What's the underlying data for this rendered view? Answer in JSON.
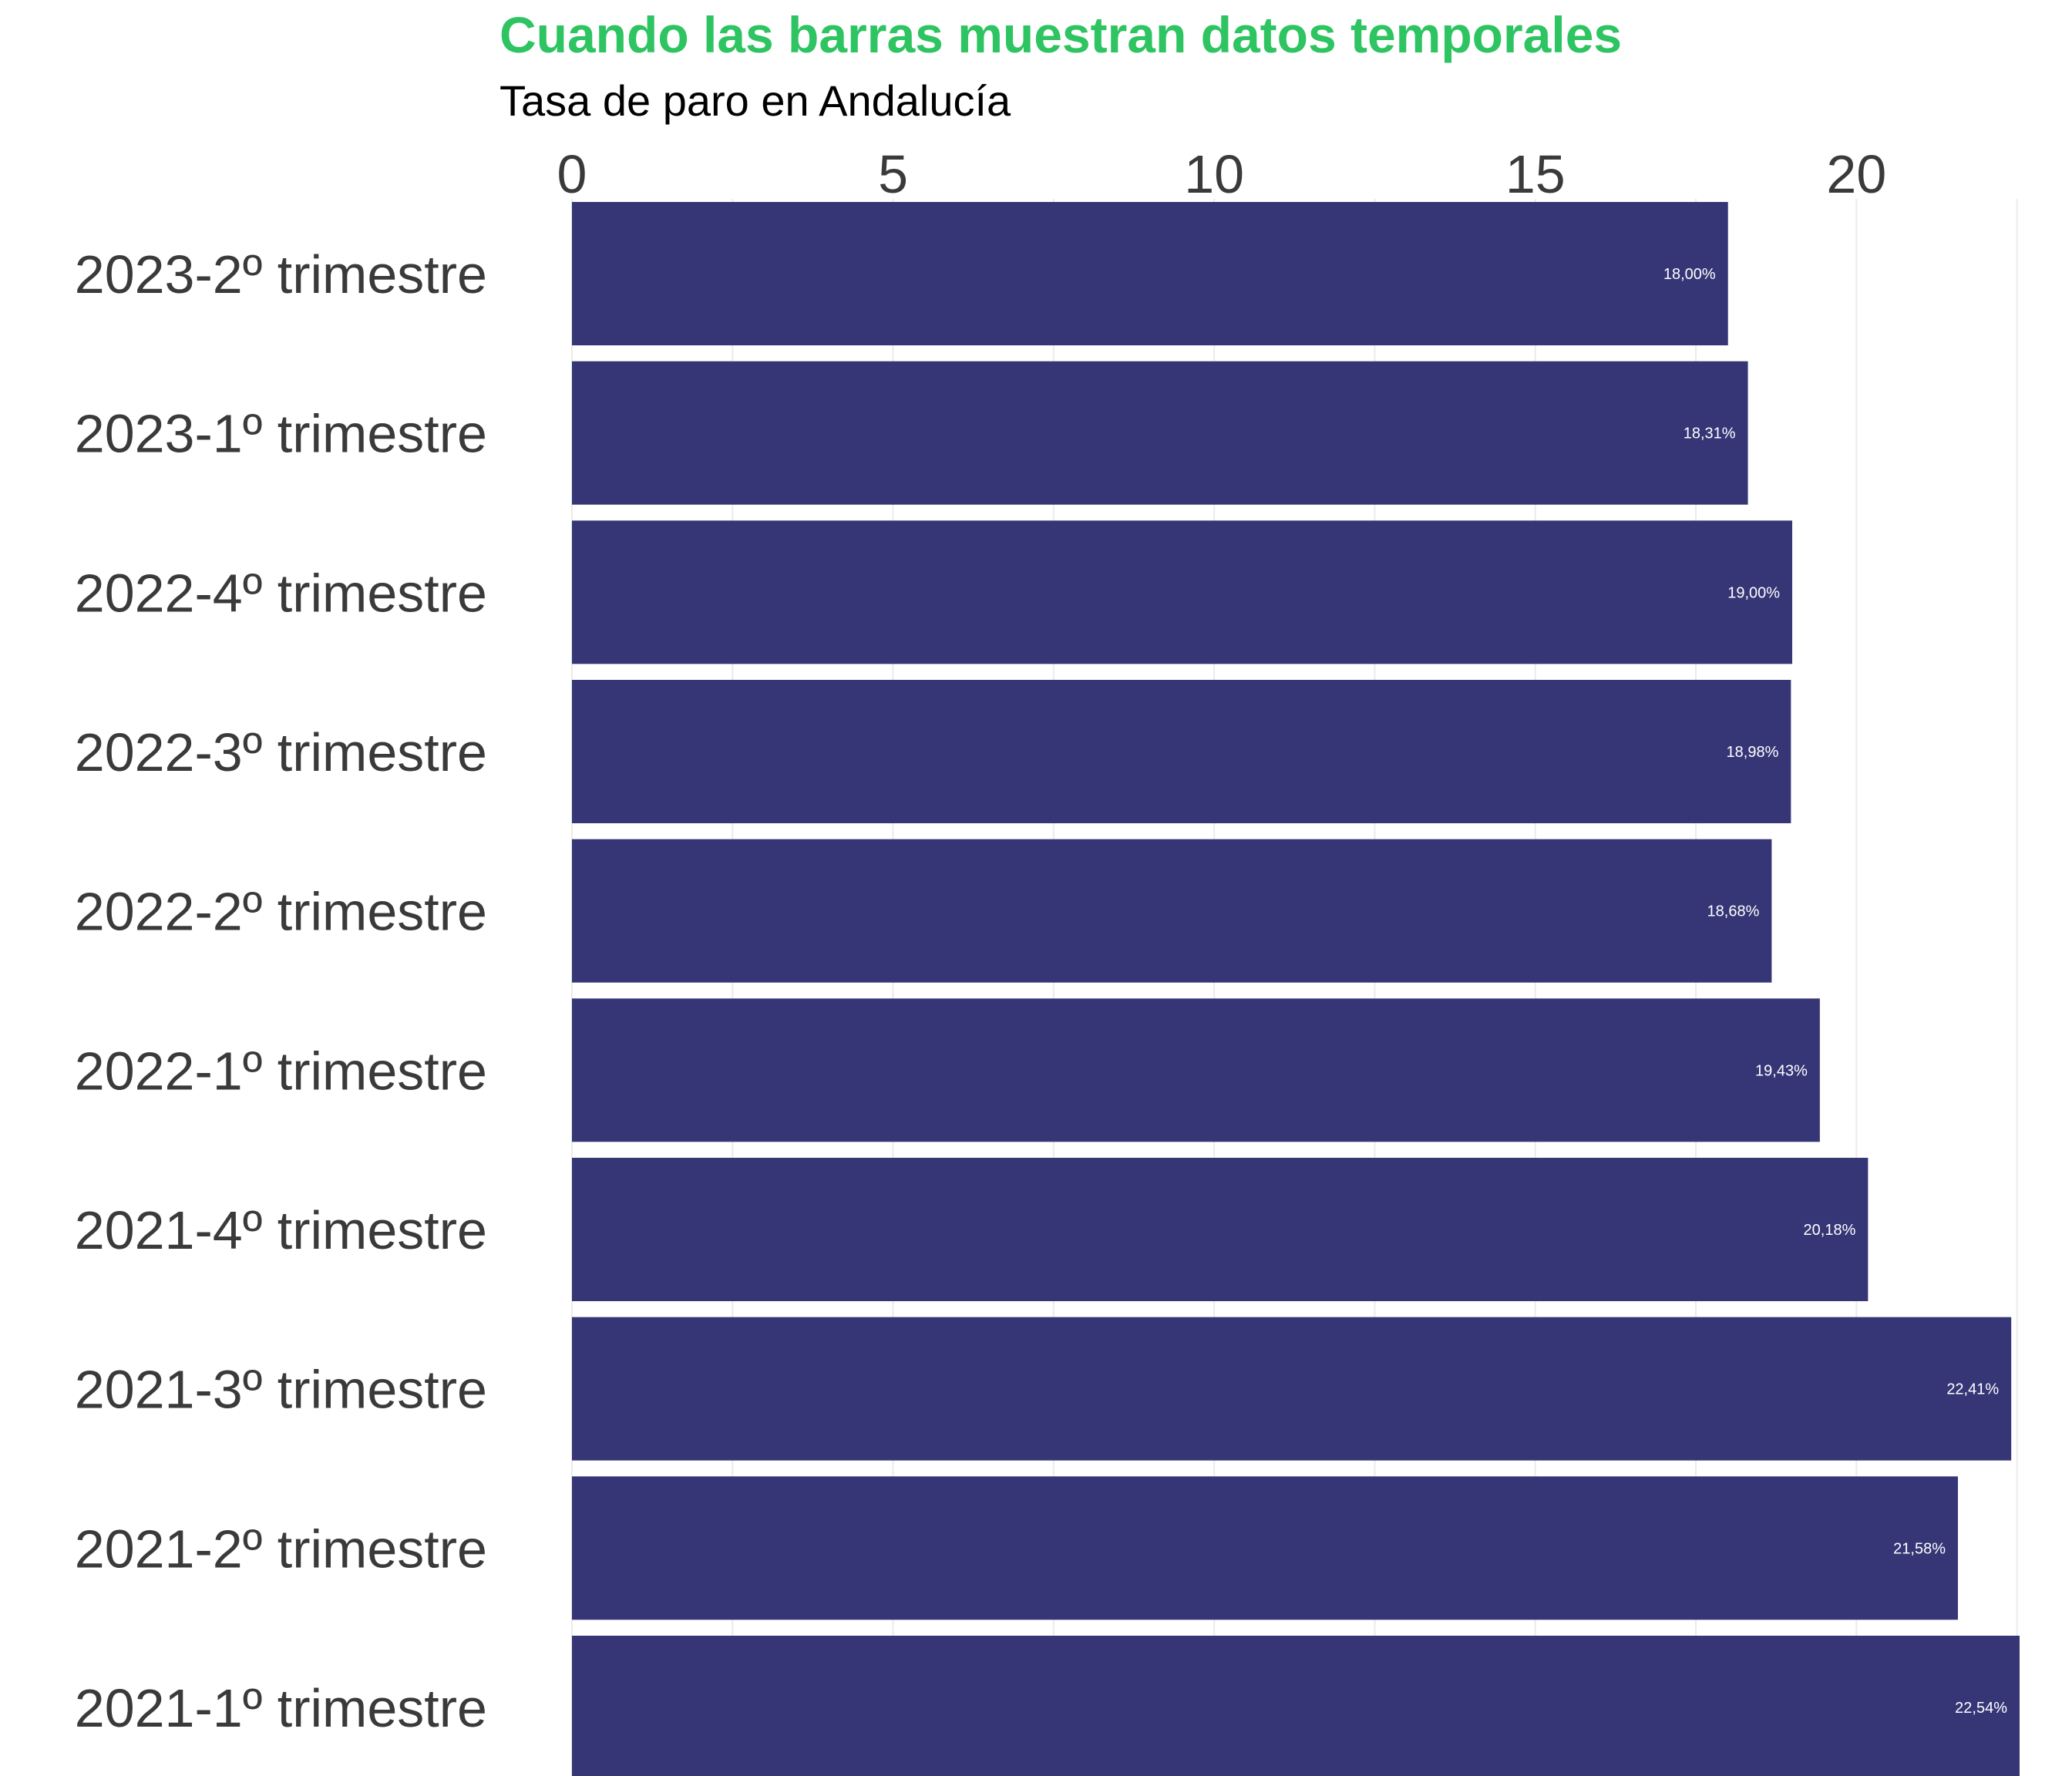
{
  "chart_data": {
    "type": "bar",
    "orientation": "horizontal",
    "title": "Cuando las barras muestran datos temporales",
    "subtitle": "Tasa de paro en Andalucía",
    "xlabel": "",
    "ylabel": "",
    "xlim": [
      0,
      22.54
    ],
    "x_ticks": [
      0,
      5,
      10,
      15,
      20
    ],
    "x_tick_labels": [
      "0",
      "5",
      "10",
      "15",
      "20"
    ],
    "x_axis_position": "top",
    "grid": true,
    "legend": "none",
    "categories": [
      "2023-2º trimestre",
      "2023-1º trimestre",
      "2022-4º trimestre",
      "2022-3º trimestre",
      "2022-2º trimestre",
      "2022-1º trimestre",
      "2021-4º trimestre",
      "2021-3º trimestre",
      "2021-2º trimestre",
      "2021-1º trimestre"
    ],
    "values": [
      18.0,
      18.31,
      19.0,
      18.98,
      18.68,
      19.43,
      20.18,
      22.41,
      21.58,
      22.54
    ],
    "data_labels": [
      "18,00%",
      "18,31%",
      "19,00%",
      "18,98%",
      "18,68%",
      "19,43%",
      "20,18%",
      "22,41%",
      "21,58%",
      "22,54%"
    ],
    "colors": {
      "bar": "#363677",
      "title": "#2dc461",
      "grid": "#ebebeb",
      "tick_text": "#3a3a3a",
      "label_text": "#ffffff"
    }
  }
}
